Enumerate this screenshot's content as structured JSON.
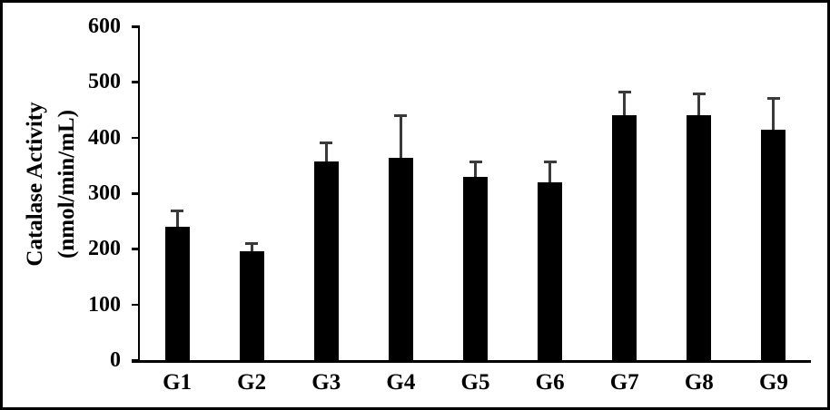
{
  "chart_data": {
    "type": "bar",
    "title": "",
    "ylabel_line1": "Catalase Activity",
    "ylabel_line2": "(nmol/min/mL)",
    "xlabel": "",
    "categories": [
      "G1",
      "G2",
      "G3",
      "G4",
      "G5",
      "G6",
      "G7",
      "G8",
      "G9"
    ],
    "series": [
      {
        "name": "Catalase Activity",
        "values": [
          240,
          196,
          357,
          364,
          329,
          320,
          441,
          440,
          414
        ],
        "errors_plus": [
          28,
          13,
          33,
          75,
          28,
          37,
          41,
          38,
          56
        ]
      }
    ],
    "ylim": [
      0,
      600
    ],
    "yticks": [
      0,
      100,
      200,
      300,
      400,
      500,
      600
    ],
    "grid": false,
    "legend": null,
    "bar_color": "#000000",
    "error_bar_color": "#3a3a3a",
    "axis_color": "#000000",
    "frame_border_color": "#000000",
    "background_color": "#ffffff"
  }
}
